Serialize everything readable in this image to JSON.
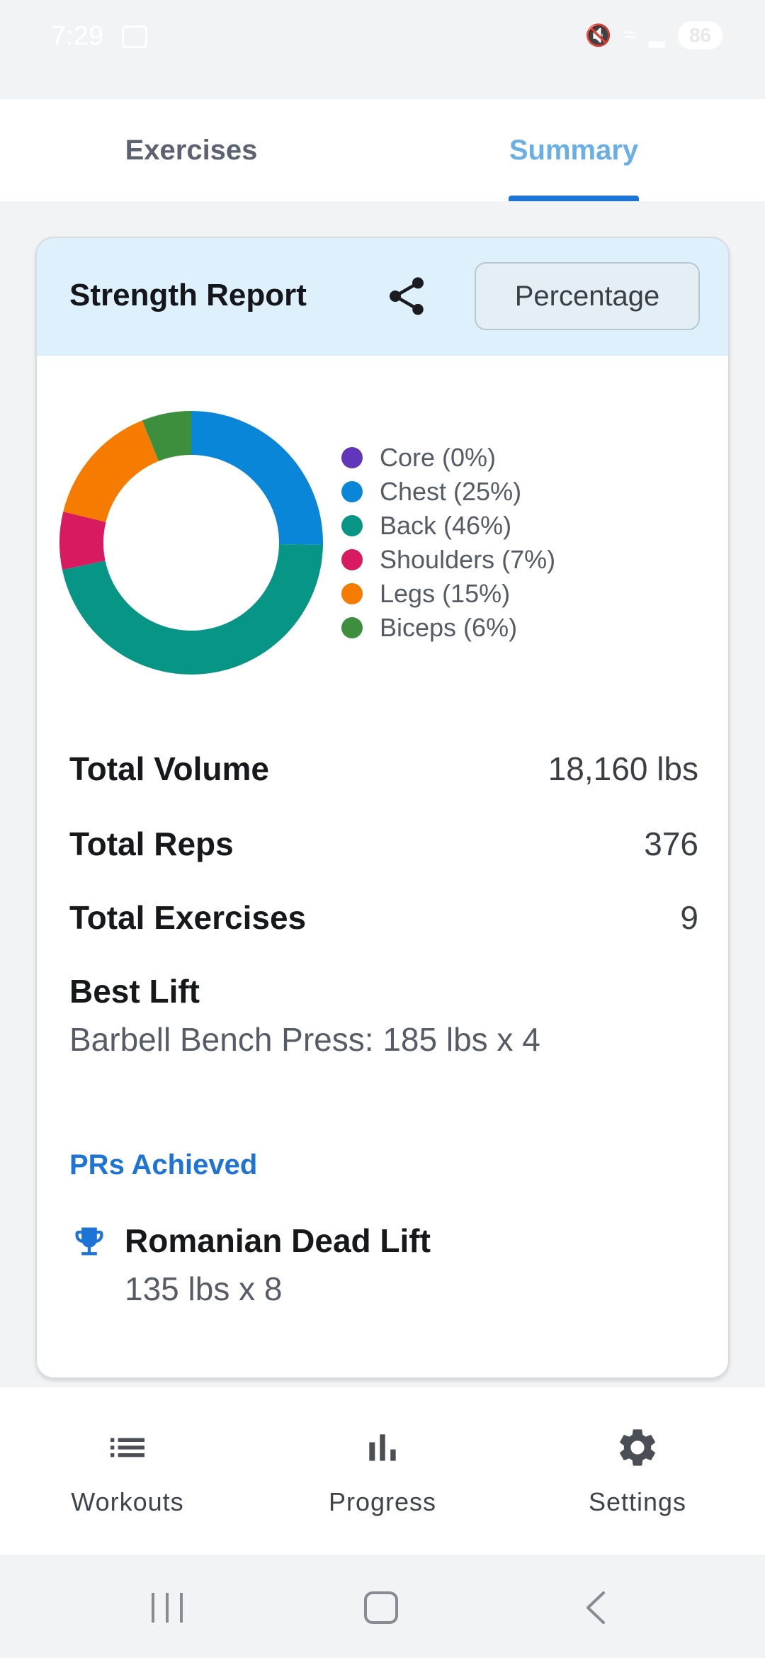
{
  "status_bar": {
    "time": "7:29",
    "battery": "86"
  },
  "tabs": [
    {
      "label": "Exercises",
      "active": false
    },
    {
      "label": "Summary",
      "active": true
    }
  ],
  "report": {
    "title": "Strength Report",
    "mode_button": "Percentage"
  },
  "chart_data": {
    "type": "pie",
    "categories": [
      "Core",
      "Chest",
      "Back",
      "Shoulders",
      "Legs",
      "Biceps"
    ],
    "values": [
      0,
      25,
      46,
      7,
      15,
      6
    ],
    "colors": [
      "#6236b8",
      "#0a86d8",
      "#079685",
      "#d81b60",
      "#f57c00",
      "#3d8f3d"
    ],
    "legend_labels": [
      "Core (0%)",
      "Chest (25%)",
      "Back (46%)",
      "Shoulders (7%)",
      "Legs (15%)",
      "Biceps (6%)"
    ],
    "donut": true,
    "legend_position": "right"
  },
  "stats": [
    {
      "label": "Total Volume",
      "value": "18,160 lbs"
    },
    {
      "label": "Total Reps",
      "value": "376"
    },
    {
      "label": "Total Exercises",
      "value": "9"
    }
  ],
  "best_lift": {
    "label": "Best Lift",
    "value": "Barbell Bench Press: 185 lbs x 4"
  },
  "prs": {
    "title": "PRs Achieved",
    "items": [
      {
        "name": "Romanian Dead Lift",
        "detail": "135 lbs x 8",
        "icon": "trophy-icon"
      }
    ]
  },
  "bottom_nav": [
    {
      "label": "Workouts",
      "icon": "list-icon"
    },
    {
      "label": "Progress",
      "icon": "bar-chart-icon"
    },
    {
      "label": "Settings",
      "icon": "gear-icon"
    }
  ]
}
